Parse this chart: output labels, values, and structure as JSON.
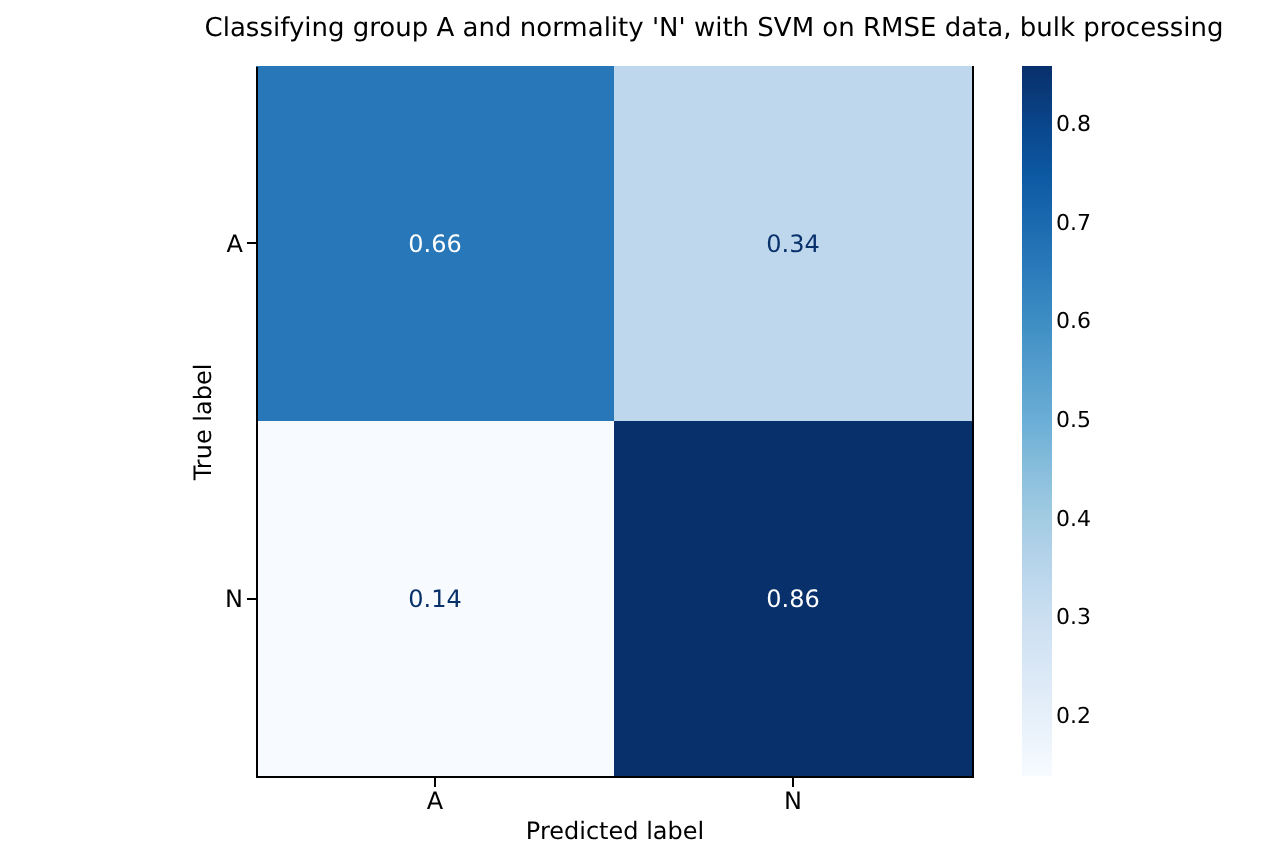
{
  "chart_data": {
    "type": "heatmap",
    "title": "Classifying group A and normality 'N' with SVM on RMSE data, bulk processing",
    "xlabel": "Predicted label",
    "ylabel": "True label",
    "categories": [
      "A",
      "N"
    ],
    "y_categories": [
      "A",
      "N"
    ],
    "cells": [
      [
        0.66,
        0.34
      ],
      [
        0.14,
        0.86
      ]
    ],
    "data_labels": true,
    "clim": [
      0.14,
      0.86
    ],
    "cticks": [
      0.2,
      0.3,
      0.4,
      0.5,
      0.6,
      0.7,
      0.8
    ]
  }
}
